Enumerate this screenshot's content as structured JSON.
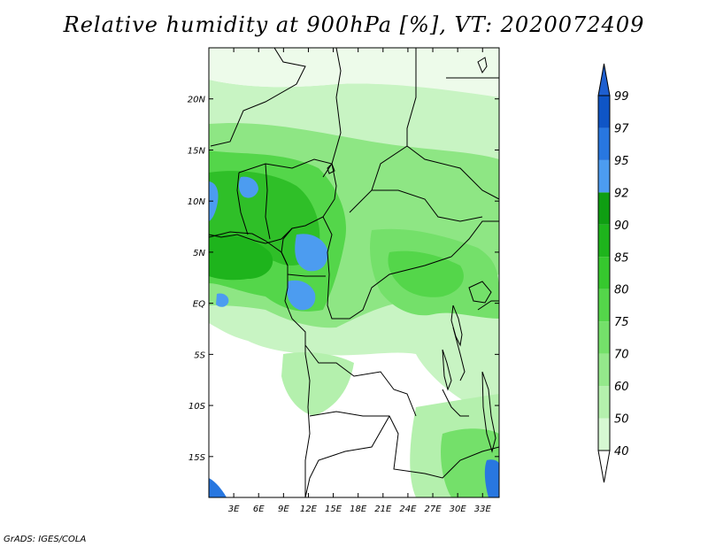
{
  "title": "Relative humidity at 900hPa [%], VT: 2020072409",
  "credit": "GrADS: IGES/COLA",
  "map": {
    "lat_range": [
      -19,
      25
    ],
    "lon_range": [
      0,
      35
    ],
    "lat_ticks": [
      {
        "value": 20,
        "label": "20N"
      },
      {
        "value": 15,
        "label": "15N"
      },
      {
        "value": 10,
        "label": "10N"
      },
      {
        "value": 5,
        "label": "5N"
      },
      {
        "value": 0,
        "label": "EQ"
      },
      {
        "value": -5,
        "label": "5S"
      },
      {
        "value": -10,
        "label": "10S"
      },
      {
        "value": -15,
        "label": "15S"
      }
    ],
    "lon_ticks": [
      {
        "value": 3,
        "label": "3E"
      },
      {
        "value": 6,
        "label": "6E"
      },
      {
        "value": 9,
        "label": "9E"
      },
      {
        "value": 12,
        "label": "12E"
      },
      {
        "value": 15,
        "label": "15E"
      },
      {
        "value": 18,
        "label": "18E"
      },
      {
        "value": 21,
        "label": "21E"
      },
      {
        "value": 24,
        "label": "24E"
      },
      {
        "value": 27,
        "label": "27E"
      },
      {
        "value": 30,
        "label": "30E"
      },
      {
        "value": 33,
        "label": "33E"
      }
    ]
  },
  "colorbar": {
    "levels": [
      "40",
      "50",
      "60",
      "70",
      "75",
      "80",
      "85",
      "90",
      "92",
      "95",
      "97",
      "99"
    ],
    "colors": [
      "#f0fcef",
      "#d6f8d2",
      "#b4f0ad",
      "#94e88b",
      "#74e06a",
      "#54d64a",
      "#36c82e",
      "#1eb41c",
      "#0f9e12",
      "#4c9cf0",
      "#2877e0",
      "#0f55c6"
    ],
    "below_color": "#ffffff",
    "above_color": "#1e5fd0"
  }
}
